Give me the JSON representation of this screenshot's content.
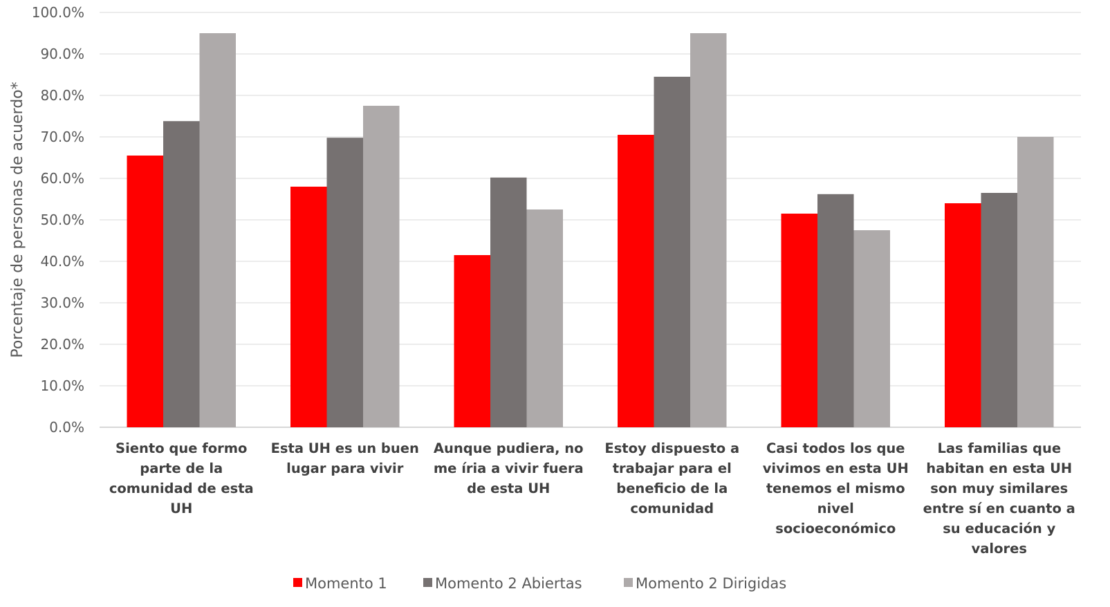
{
  "chart_data": {
    "type": "bar",
    "title": "",
    "xlabel": "",
    "ylabel": "Porcentaje de personas de acuerdo*",
    "ylim": [
      0,
      100
    ],
    "yticks": [
      "0.0%",
      "10.0%",
      "20.0%",
      "30.0%",
      "40.0%",
      "50.0%",
      "60.0%",
      "70.0%",
      "80.0%",
      "90.0%",
      "100.0%"
    ],
    "grid": true,
    "legend_position": "bottom",
    "categories": [
      [
        "Siento que formo",
        "parte de la",
        "comunidad de esta",
        "UH"
      ],
      [
        "Esta UH es un buen",
        "lugar para vivir"
      ],
      [
        "Aunque pudiera, no",
        "me íria a vivir fuera",
        "de esta UH"
      ],
      [
        "Estoy dispuesto a",
        "trabajar para el",
        "beneficio de la",
        "comunidad"
      ],
      [
        "Casi todos los que",
        "vivimos en esta UH",
        "tenemos el mismo",
        "nivel",
        "socioeconómico"
      ],
      [
        "Las familias que",
        "habitan en esta UH",
        "son muy similares",
        "entre sí en cuanto a",
        "su educación y",
        "valores"
      ]
    ],
    "series": [
      {
        "name": "Momento 1",
        "color": "#ff0000",
        "values": [
          65.5,
          58.0,
          41.5,
          70.5,
          51.5,
          54.0
        ]
      },
      {
        "name": "Momento 2 Abiertas",
        "color": "#767171",
        "values": [
          73.8,
          69.8,
          60.2,
          84.5,
          56.2,
          56.5
        ]
      },
      {
        "name": "Momento 2 Dirigidas",
        "color": "#aeaaaa",
        "values": [
          95.0,
          77.5,
          52.5,
          95.0,
          47.5,
          70.0
        ]
      }
    ]
  }
}
